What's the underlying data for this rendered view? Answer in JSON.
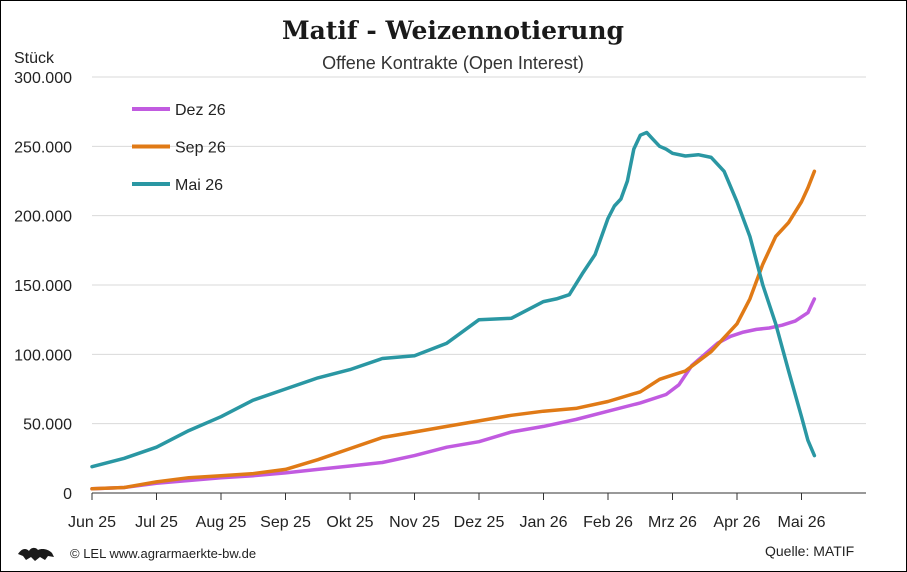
{
  "chart_data": {
    "type": "line",
    "title": "Matif - Weizennotierung",
    "subtitle": "Offene Kontrakte (Open Interest)",
    "ylabel": "Stück",
    "ylim": [
      0,
      300000
    ],
    "yticks": [
      0,
      50000,
      100000,
      150000,
      200000,
      250000,
      300000
    ],
    "ytick_labels": [
      "0",
      "50.000",
      "100.000",
      "150.000",
      "200.000",
      "250.000",
      "300.000"
    ],
    "xlim": [
      0,
      12.25
    ],
    "xtick_labels": [
      "Jun 25",
      "Jul 25",
      "Aug 25",
      "Sep 25",
      "Okt 25",
      "Nov 25",
      "Dez 25",
      "Jan 26",
      "Feb 26",
      "Mrz 26",
      "Apr 26",
      "Mai 26"
    ],
    "grid": "horizontal",
    "legend_position": "top-left",
    "series": [
      {
        "name": "Dez 26",
        "color": "#c15be0",
        "x": [
          0,
          0.5,
          1,
          1.5,
          2,
          2.5,
          3,
          3.5,
          4,
          4.5,
          5,
          5.5,
          6,
          6.5,
          7,
          7.5,
          8,
          8.5,
          8.9,
          9.1,
          9.3,
          9.5,
          9.7,
          9.9,
          10.1,
          10.3,
          10.5,
          10.7,
          10.9,
          11.1,
          11.2
        ],
        "y": [
          3000,
          4000,
          7000,
          9000,
          11000,
          12500,
          14500,
          17000,
          19500,
          22000,
          27000,
          33000,
          37000,
          44000,
          48000,
          53000,
          59000,
          65000,
          71000,
          78000,
          92000,
          100000,
          108000,
          113000,
          116000,
          118000,
          119000,
          121000,
          124000,
          130000,
          140000
        ]
      },
      {
        "name": "Sep 26",
        "color": "#e07a16",
        "x": [
          0,
          0.5,
          1,
          1.5,
          2,
          2.5,
          3,
          3.5,
          4,
          4.5,
          5,
          5.5,
          6,
          6.5,
          7,
          7.5,
          8,
          8.5,
          8.8,
          9.0,
          9.2,
          9.4,
          9.6,
          9.8,
          10.0,
          10.2,
          10.4,
          10.6,
          10.8,
          11.0,
          11.1,
          11.2
        ],
        "y": [
          3000,
          4000,
          8000,
          11000,
          12500,
          14000,
          17000,
          24000,
          32000,
          40000,
          44000,
          48000,
          52000,
          56000,
          59000,
          61000,
          66000,
          73000,
          82000,
          85000,
          88000,
          95000,
          102000,
          112000,
          122000,
          140000,
          165000,
          185000,
          195000,
          210000,
          220000,
          232000
        ]
      },
      {
        "name": "Mai 26",
        "color": "#2a97a3",
        "x": [
          0,
          0.5,
          1,
          1.5,
          2,
          2.5,
          3,
          3.5,
          4,
          4.5,
          5,
          5.5,
          6,
          6.5,
          7,
          7.2,
          7.4,
          7.6,
          7.8,
          8.0,
          8.1,
          8.2,
          8.3,
          8.4,
          8.5,
          8.6,
          8.7,
          8.8,
          8.9,
          9.0,
          9.2,
          9.4,
          9.6,
          9.8,
          10.0,
          10.2,
          10.4,
          10.6,
          10.8,
          11.0,
          11.1,
          11.2
        ],
        "y": [
          19000,
          25000,
          33000,
          45000,
          55000,
          67000,
          75000,
          83000,
          89000,
          97000,
          99000,
          108000,
          125000,
          126000,
          138000,
          140000,
          143000,
          158000,
          172000,
          198000,
          207000,
          212000,
          225000,
          248000,
          258000,
          260000,
          255000,
          250000,
          248000,
          245000,
          243000,
          244000,
          242000,
          232000,
          210000,
          185000,
          150000,
          122000,
          88000,
          55000,
          38000,
          27000
        ]
      }
    ]
  },
  "footer": {
    "copyright": "© LEL www.agrarmaerkte-bw.de",
    "source": "Quelle:  MATIF",
    "logo_icon": "lions-coat-of-arms-icon"
  }
}
